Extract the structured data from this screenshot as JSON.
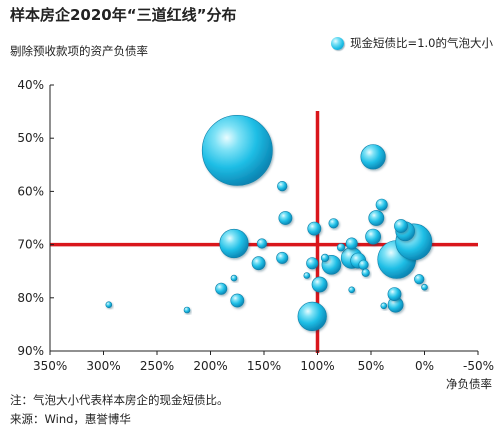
{
  "chart_data": {
    "type": "scatter",
    "title": "样本房企2020年“三道红线”分布",
    "ylabel": "剔除预收款项的资产负债率",
    "xlabel": "净负债率",
    "legend": {
      "label": "现金短债比=1.0的气泡大小",
      "placement": "top-right"
    },
    "note": "注：气泡大小代表样本房企的现金短债比。",
    "source": "来源：Wind，惠誉博华",
    "x_axis": {
      "unit": "%",
      "reversed": true,
      "lim": [
        350,
        -50
      ],
      "ticks": [
        350,
        300,
        250,
        200,
        150,
        100,
        50,
        0,
        -50
      ],
      "tick_labels": [
        "350%",
        "300%",
        "250%",
        "200%",
        "150%",
        "100%",
        "50%",
        "0%",
        "-50%"
      ]
    },
    "y_axis": {
      "unit": "%",
      "reversed": true,
      "lim": [
        40,
        90
      ],
      "ticks": [
        40,
        50,
        60,
        70,
        80,
        90
      ],
      "tick_labels": [
        "40%",
        "50%",
        "60%",
        "70%",
        "80%",
        "90%"
      ]
    },
    "grid": false,
    "threshold_lines": {
      "x": 100,
      "y": 70,
      "color": "#d9161b"
    },
    "bubble_color": "#20bfe6",
    "points": [
      {
        "x": 175,
        "y": 52.3,
        "r": 3.7
      },
      {
        "x": 48,
        "y": 53.5,
        "r": 1.3
      },
      {
        "x": 133,
        "y": 59.0,
        "r": 0.5
      },
      {
        "x": 40,
        "y": 62.5,
        "r": 0.6
      },
      {
        "x": 130,
        "y": 65.0,
        "r": 0.7
      },
      {
        "x": 45,
        "y": 65.0,
        "r": 0.8
      },
      {
        "x": 85,
        "y": 66.0,
        "r": 0.5
      },
      {
        "x": 103,
        "y": 67.0,
        "r": 0.7
      },
      {
        "x": 22,
        "y": 66.5,
        "r": 0.7
      },
      {
        "x": 18,
        "y": 67.5,
        "r": 1.0
      },
      {
        "x": 48,
        "y": 68.5,
        "r": 0.8
      },
      {
        "x": 10,
        "y": 69.5,
        "r": 1.9
      },
      {
        "x": 178,
        "y": 69.8,
        "r": 1.5
      },
      {
        "x": 152,
        "y": 69.8,
        "r": 0.5
      },
      {
        "x": 68,
        "y": 69.8,
        "r": 0.6
      },
      {
        "x": 78,
        "y": 70.5,
        "r": 0.4
      },
      {
        "x": 133,
        "y": 72.5,
        "r": 0.6
      },
      {
        "x": 68,
        "y": 72.5,
        "r": 1.1
      },
      {
        "x": 62,
        "y": 73.0,
        "r": 0.8
      },
      {
        "x": 26,
        "y": 72.8,
        "r": 2.0
      },
      {
        "x": 93,
        "y": 72.5,
        "r": 0.4
      },
      {
        "x": 105,
        "y": 73.5,
        "r": 0.6
      },
      {
        "x": 87,
        "y": 73.8,
        "r": 1.0
      },
      {
        "x": 155,
        "y": 73.5,
        "r": 0.7
      },
      {
        "x": 57,
        "y": 73.8,
        "r": 0.5
      },
      {
        "x": 55,
        "y": 75.3,
        "r": 0.4
      },
      {
        "x": 110,
        "y": 75.8,
        "r": 0.3
      },
      {
        "x": 178,
        "y": 76.3,
        "r": 0.2
      },
      {
        "x": 5,
        "y": 76.5,
        "r": 0.5
      },
      {
        "x": 98,
        "y": 77.5,
        "r": 0.8
      },
      {
        "x": 190,
        "y": 78.3,
        "r": 0.6
      },
      {
        "x": 68,
        "y": 78.5,
        "r": 0.3
      },
      {
        "x": 0,
        "y": 78.0,
        "r": 0.3
      },
      {
        "x": 28,
        "y": 79.3,
        "r": 0.7
      },
      {
        "x": 175,
        "y": 80.5,
        "r": 0.7
      },
      {
        "x": 27,
        "y": 81.3,
        "r": 0.8
      },
      {
        "x": 38,
        "y": 81.5,
        "r": 0.3
      },
      {
        "x": 295,
        "y": 81.3,
        "r": 0.3
      },
      {
        "x": 222,
        "y": 82.3,
        "r": 0.3
      },
      {
        "x": 105,
        "y": 83.5,
        "r": 1.5
      }
    ]
  }
}
